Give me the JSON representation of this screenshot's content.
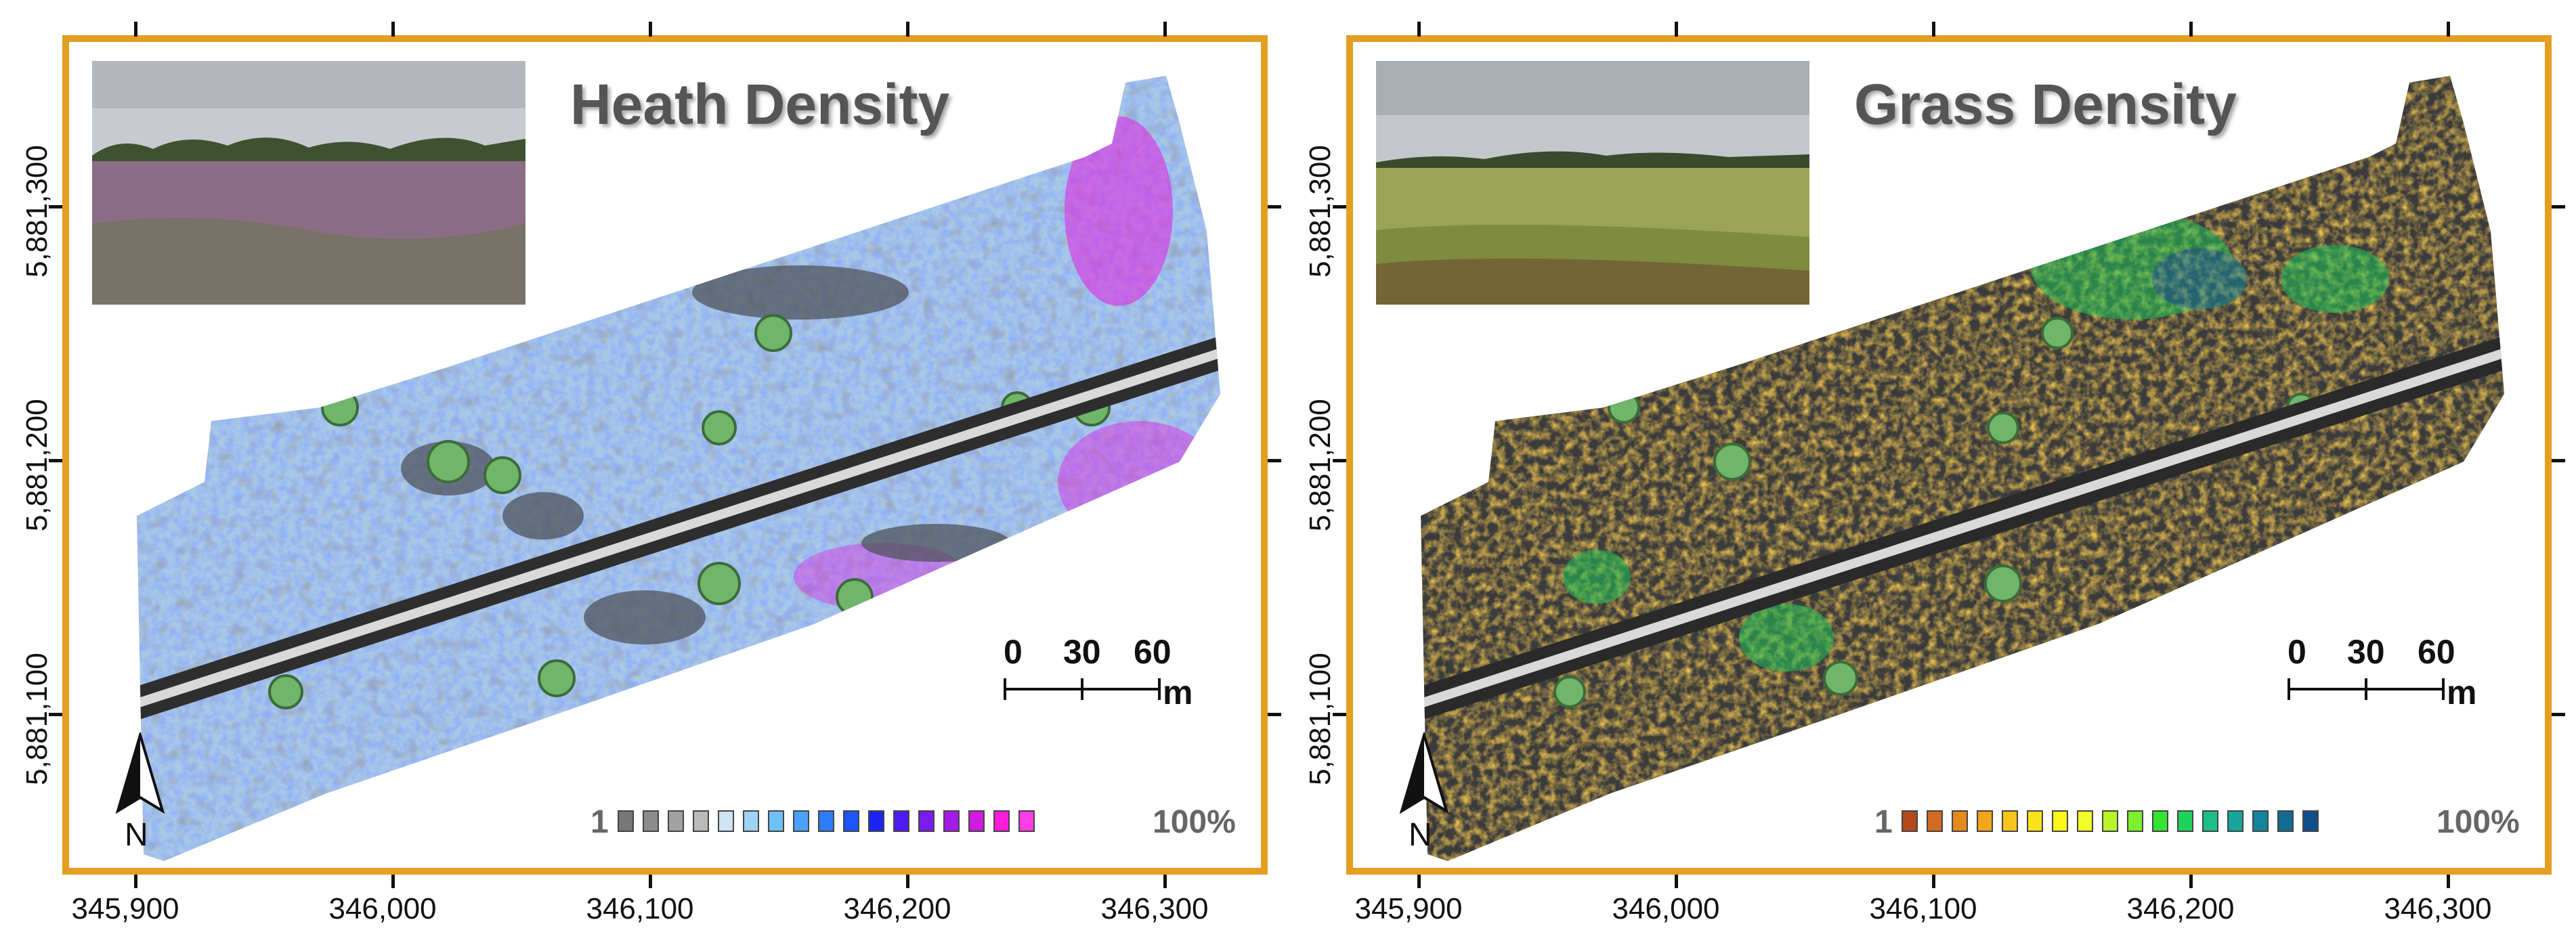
{
  "panels": [
    {
      "title": "Heath Density",
      "legend": {
        "min_label": "1",
        "max_label": "100%",
        "colors": [
          "#777777",
          "#8c8c8c",
          "#a2a2a2",
          "#b9b9b9",
          "#cfe3f2",
          "#9fd4f4",
          "#6ec0f6",
          "#4aa2ff",
          "#2f7cff",
          "#1b55ff",
          "#1b24f5",
          "#4d1bf2",
          "#7a1bf0",
          "#a41be8",
          "#d21be0",
          "#ff1bdc",
          "#ff3ce6"
        ]
      },
      "map_palette": {
        "base": "#a9c8e6",
        "dark": "#555b66",
        "high": "#3a55ff",
        "peak": "#e21fe0"
      },
      "photo": "heathland-photo"
    },
    {
      "title": "Grass Density",
      "legend": {
        "min_label": "1",
        "max_label": "100%",
        "colors": [
          "#b24a1c",
          "#d26a22",
          "#e68a1c",
          "#f2a619",
          "#f8c51a",
          "#fbe21b",
          "#fff61e",
          "#f3ff2a",
          "#b8f52a",
          "#7cf02a",
          "#35e430",
          "#1ed25a",
          "#1cbf86",
          "#17a59b",
          "#13859a",
          "#126c94",
          "#0f4f8a"
        ]
      },
      "map_palette": {
        "base": "#3b3b3b",
        "dark": "#2a2a2a",
        "high": "#f0a21a",
        "peak": "#1fc25a"
      },
      "photo": "grassland-photo"
    }
  ],
  "scale": {
    "labels": [
      "0",
      "30",
      "60"
    ],
    "unit": "m"
  },
  "north": {
    "label": "N"
  },
  "axes": {
    "x_labels": [
      "345,900",
      "346,000",
      "346,100",
      "346,200",
      "346,300"
    ],
    "y_labels": [
      "5,881,300",
      "5,881,200",
      "5,881,100"
    ]
  },
  "colors": {
    "frame": "#e49e22",
    "road": "#d9d9d9",
    "tree": "#6fb56a"
  }
}
